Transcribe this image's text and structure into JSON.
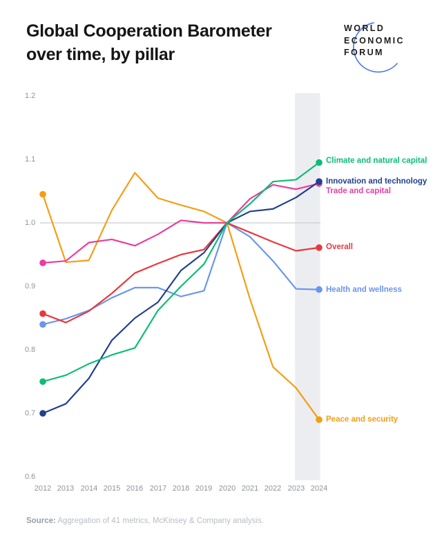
{
  "header": {
    "title_line1": "Global Cooperation Barometer",
    "title_line2": "over time, by pillar",
    "logo": {
      "line1": "WORLD",
      "line2": "ECONOMIC",
      "line3": "FORUM"
    }
  },
  "chart_data": {
    "type": "line",
    "title": "Global Cooperation Barometer over time, by pillar",
    "x": [
      2012,
      2013,
      2014,
      2015,
      2016,
      2017,
      2018,
      2019,
      2020,
      2021,
      2022,
      2023,
      2024
    ],
    "yticks": [
      "1.2",
      "1.1",
      "1.0",
      "0.9",
      "0.8",
      "0.7",
      "0.6"
    ],
    "ylim": [
      0.6,
      1.2
    ],
    "baseline": 1.0,
    "grid": "baseline-only",
    "highlight_band_years": [
      2023,
      2024
    ],
    "legend_position": "right-of-line-ends",
    "colors": {
      "band": "#ebedf0",
      "baseline_line": "#c9ccd1",
      "axis_text": "#8e939c",
      "logo_arc": "#4f7fe6"
    },
    "series": [
      {
        "name": "Climate and natural capital",
        "color": "#0bbd74",
        "values": [
          0.75,
          0.76,
          0.778,
          0.792,
          0.803,
          0.862,
          0.9,
          0.935,
          1.0,
          1.03,
          1.065,
          1.068,
          1.095
        ]
      },
      {
        "name": "Innovation and technology",
        "color": "#22408f",
        "values": [
          0.7,
          0.715,
          0.755,
          0.815,
          0.85,
          0.875,
          0.925,
          0.953,
          1.0,
          1.018,
          1.022,
          1.04,
          1.065
        ]
      },
      {
        "name": "Trade and capital",
        "color": "#ea3d9f",
        "values": [
          0.937,
          0.94,
          0.969,
          0.974,
          0.964,
          0.982,
          1.004,
          1.0,
          1.0,
          1.038,
          1.06,
          1.053,
          1.062
        ]
      },
      {
        "name": "Overall",
        "color": "#e8383e",
        "values": [
          0.857,
          0.843,
          0.861,
          0.889,
          0.921,
          0.936,
          0.95,
          0.958,
          1.0,
          0.985,
          0.97,
          0.956,
          0.961
        ]
      },
      {
        "name": "Health and wellness",
        "color": "#6b95ee",
        "values": [
          0.84,
          0.849,
          0.862,
          0.882,
          0.898,
          0.898,
          0.884,
          0.893,
          1.0,
          0.978,
          0.94,
          0.896,
          0.895
        ]
      },
      {
        "name": "Peace and security",
        "color": "#f49e14",
        "values": [
          1.045,
          0.938,
          0.941,
          1.02,
          1.079,
          1.039,
          1.028,
          1.018,
          1.0,
          0.88,
          0.773,
          0.74,
          0.69
        ]
      }
    ]
  },
  "source": {
    "label": "Source:",
    "text": " Aggregation of 41 metrics, McKinsey & Company analysis."
  }
}
